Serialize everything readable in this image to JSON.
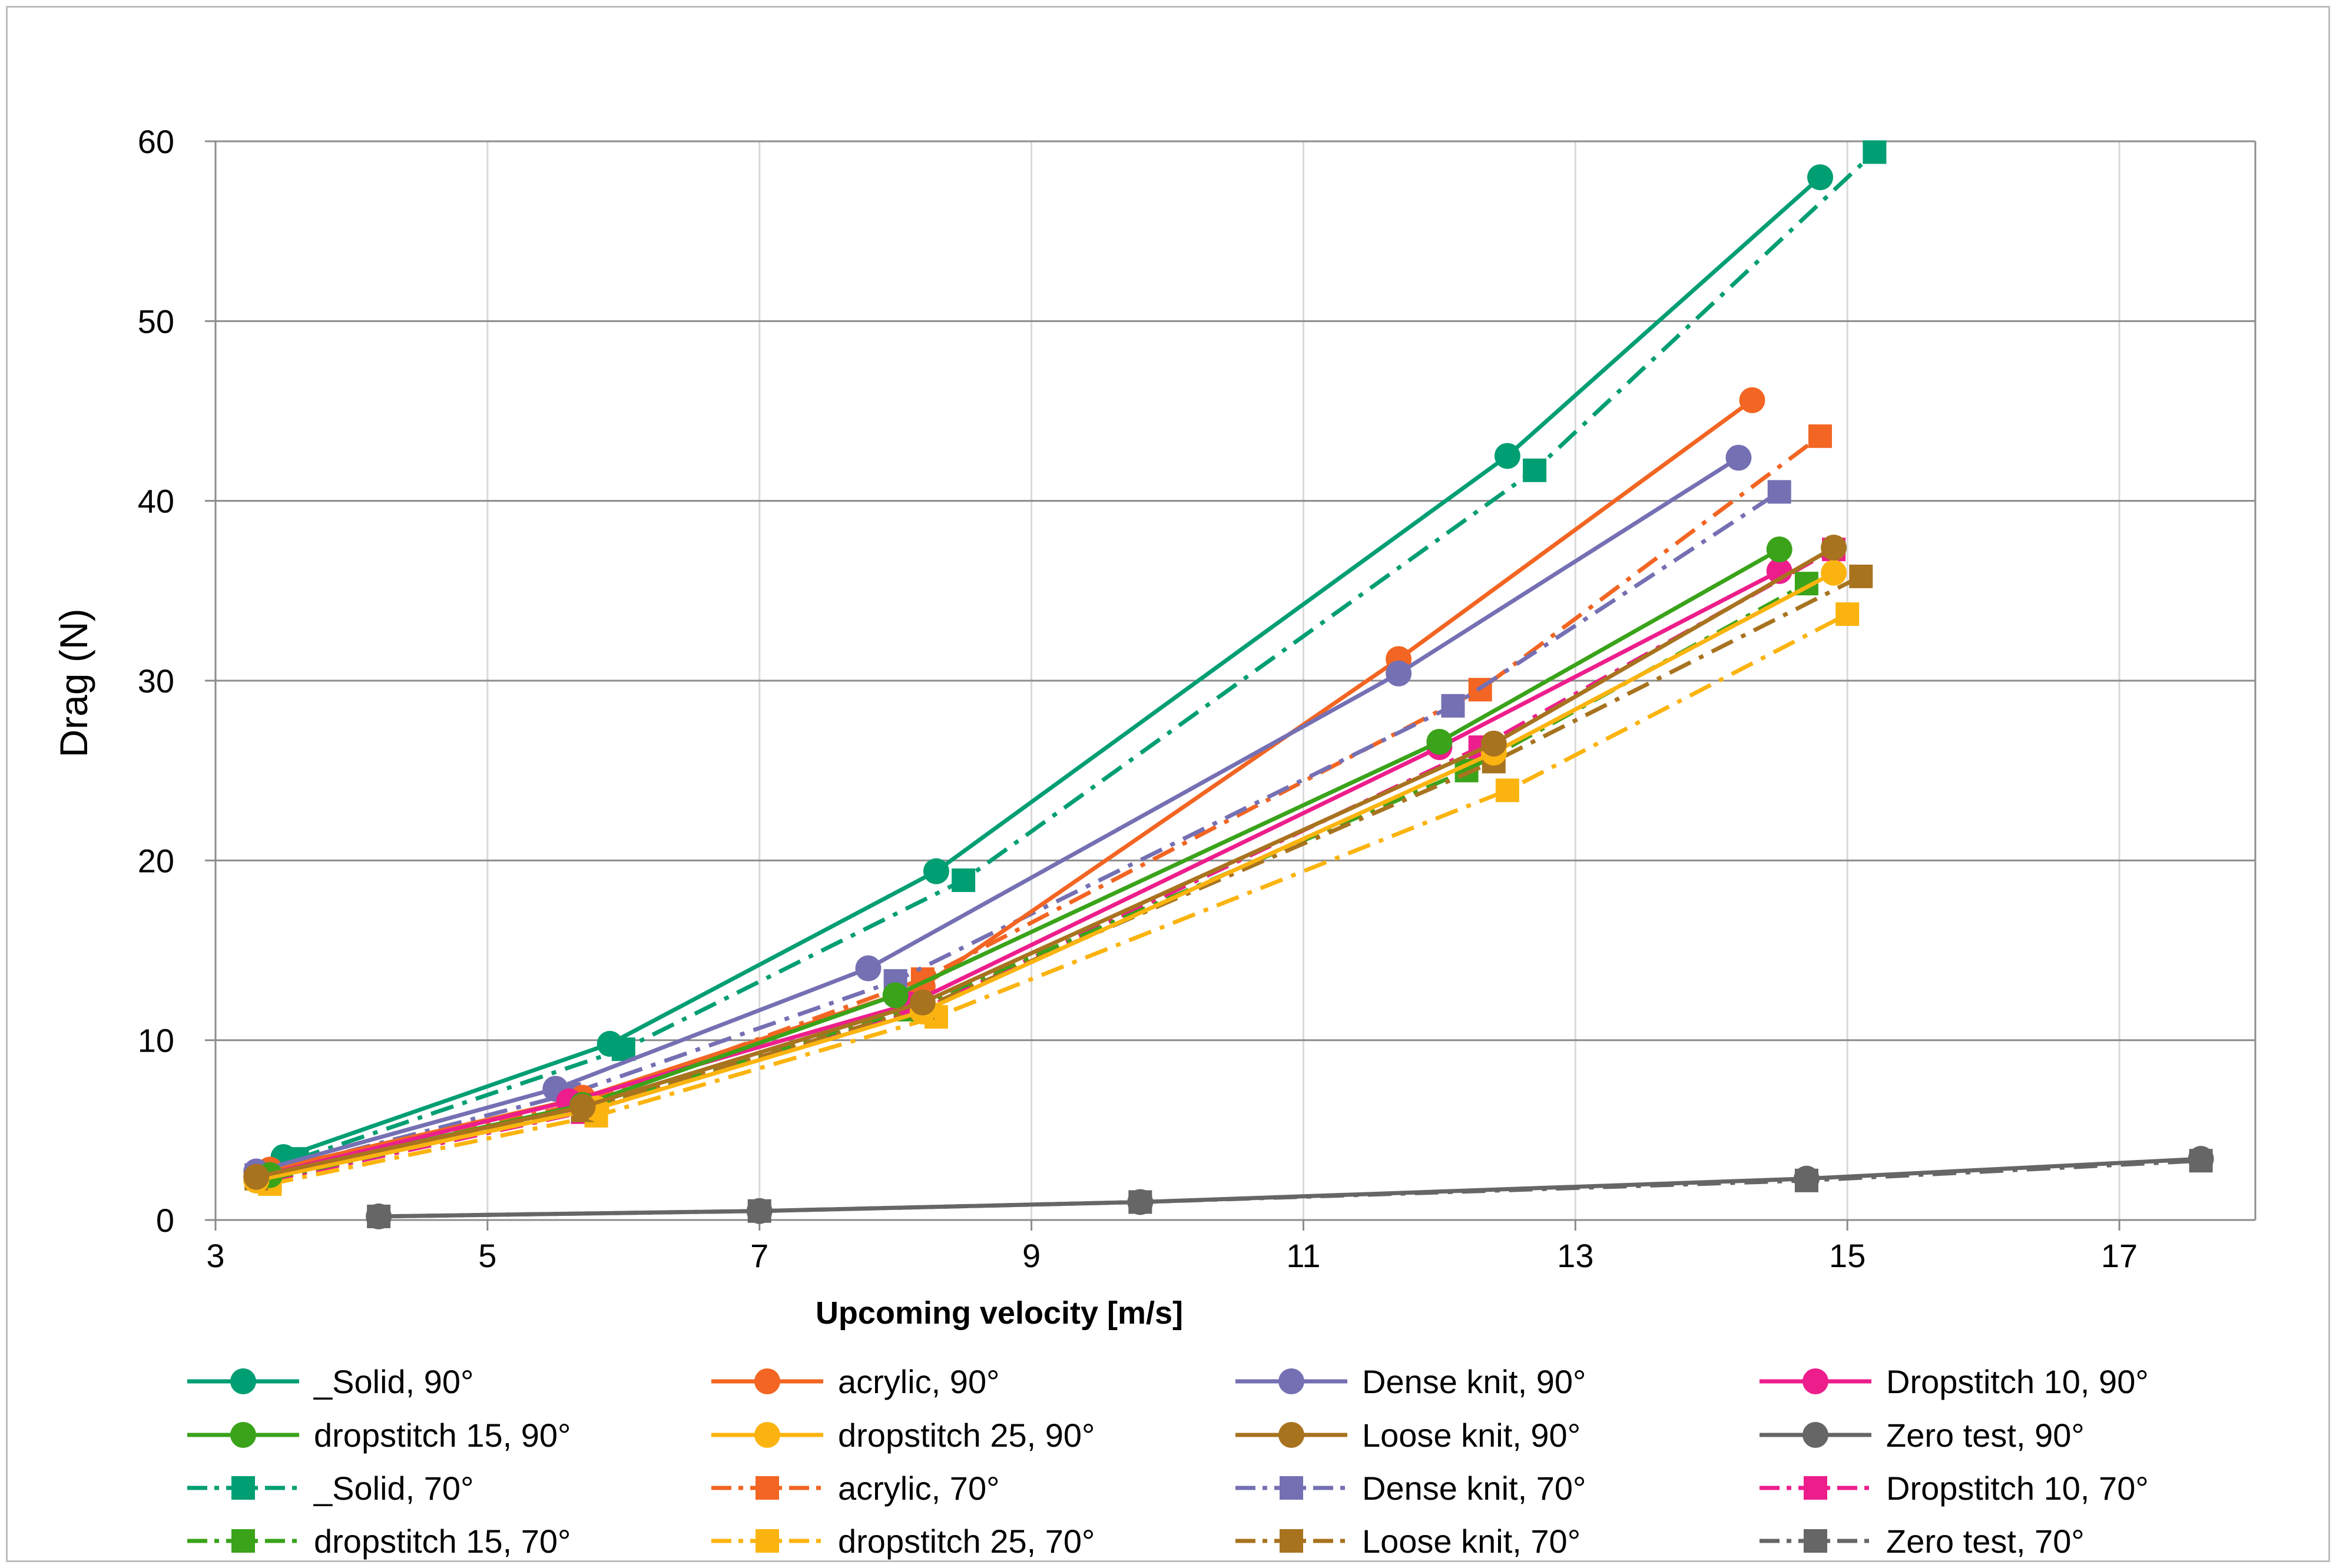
{
  "chart_data": {
    "type": "line",
    "title": "",
    "xlabel": "Upcoming velocity [m/s]",
    "ylabel": "Drag (N)",
    "xlim": [
      3,
      18
    ],
    "ylim": [
      0,
      60
    ],
    "xticks": [
      3,
      5,
      7,
      9,
      11,
      13,
      15,
      17
    ],
    "yticks": [
      0,
      10,
      20,
      30,
      40,
      50,
      60
    ],
    "grid": true,
    "legend_position": "bottom",
    "series": [
      {
        "name": "_Solid, 90°",
        "color": "#009e73",
        "marker": "circle",
        "dash": "solid",
        "x": [
          3.5,
          5.9,
          8.3,
          12.5,
          14.8
        ],
        "y": [
          3.5,
          9.8,
          19.4,
          42.5,
          58.0
        ]
      },
      {
        "name": "acrylic, 90°",
        "color": "#f26522",
        "marker": "circle",
        "dash": "solid",
        "x": [
          3.4,
          5.7,
          8.2,
          11.7,
          14.3
        ],
        "y": [
          2.8,
          6.8,
          13.0,
          31.2,
          45.6
        ]
      },
      {
        "name": "Dense knit, 90°",
        "color": "#7570b3",
        "marker": "circle",
        "dash": "solid",
        "x": [
          3.3,
          5.5,
          7.8,
          11.7,
          14.2
        ],
        "y": [
          2.7,
          7.3,
          14.0,
          30.4,
          42.4
        ]
      },
      {
        "name": "Dropstitch 10, 90°",
        "color": "#ed1e8c",
        "marker": "circle",
        "dash": "solid",
        "x": [
          3.3,
          5.6,
          8.1,
          12.0,
          14.5
        ],
        "y": [
          2.4,
          6.6,
          12.0,
          26.3,
          36.1
        ]
      },
      {
        "name": "dropstitch 15, 90°",
        "color": "#3aa31a",
        "marker": "circle",
        "dash": "solid",
        "x": [
          3.4,
          5.7,
          8.0,
          12.0,
          14.5
        ],
        "y": [
          2.5,
          6.4,
          12.5,
          26.6,
          37.3
        ]
      },
      {
        "name": "dropstitch 25, 90°",
        "color": "#fbb40f",
        "marker": "circle",
        "dash": "solid",
        "x": [
          3.3,
          5.8,
          8.2,
          12.4,
          14.9
        ],
        "y": [
          2.2,
          6.2,
          11.6,
          26.0,
          36.0
        ]
      },
      {
        "name": "Loose knit, 90°",
        "color": "#a8731f",
        "marker": "circle",
        "dash": "solid",
        "x": [
          3.3,
          5.7,
          8.2,
          12.4,
          14.9
        ],
        "y": [
          2.4,
          6.3,
          12.1,
          26.5,
          37.4
        ]
      },
      {
        "name": "Zero test, 90°",
        "color": "#666666",
        "marker": "circle",
        "dash": "solid",
        "x": [
          4.2,
          7.0,
          9.8,
          14.7,
          17.6
        ],
        "y": [
          0.2,
          0.5,
          1.0,
          2.3,
          3.4
        ]
      },
      {
        "name": "_Solid, 70°",
        "color": "#009e73",
        "marker": "square",
        "dash": "dashdot",
        "x": [
          3.6,
          6.0,
          8.5,
          12.7,
          15.2
        ],
        "y": [
          3.4,
          9.5,
          18.9,
          41.7,
          59.4
        ]
      },
      {
        "name": "acrylic, 70°",
        "color": "#f26522",
        "marker": "square",
        "dash": "dashdot",
        "x": [
          3.4,
          5.7,
          8.2,
          12.3,
          14.8
        ],
        "y": [
          2.6,
          6.5,
          13.4,
          29.5,
          43.6
        ]
      },
      {
        "name": "Dense knit, 70°",
        "color": "#7570b3",
        "marker": "square",
        "dash": "dashdot",
        "x": [
          3.3,
          5.6,
          8.0,
          12.1,
          14.5
        ],
        "y": [
          2.5,
          7.0,
          13.3,
          28.6,
          40.5
        ]
      },
      {
        "name": "Dropstitch 10, 70°",
        "color": "#ed1e8c",
        "marker": "square",
        "dash": "dashdot",
        "x": [
          3.4,
          5.7,
          8.2,
          12.3,
          14.9
        ],
        "y": [
          2.2,
          6.0,
          11.7,
          26.3,
          37.3
        ]
      },
      {
        "name": "dropstitch 15, 70°",
        "color": "#3aa31a",
        "marker": "square",
        "dash": "dashdot",
        "x": [
          3.4,
          5.7,
          8.1,
          12.2,
          14.7
        ],
        "y": [
          2.3,
          6.1,
          11.7,
          25.0,
          35.4
        ]
      },
      {
        "name": "dropstitch 25, 70°",
        "color": "#fbb40f",
        "marker": "square",
        "dash": "dashdot",
        "x": [
          3.4,
          5.8,
          8.3,
          12.5,
          15.0
        ],
        "y": [
          2.0,
          5.8,
          11.3,
          23.9,
          33.7
        ]
      },
      {
        "name": "Loose knit, 70°",
        "color": "#a8731f",
        "marker": "square",
        "dash": "dashdot",
        "x": [
          3.3,
          5.7,
          8.2,
          12.4,
          15.1
        ],
        "y": [
          2.3,
          6.1,
          11.8,
          25.5,
          35.8
        ]
      },
      {
        "name": "Zero test, 70°",
        "color": "#666666",
        "marker": "square",
        "dash": "dashdot",
        "x": [
          4.2,
          7.0,
          9.8,
          14.7,
          17.6
        ],
        "y": [
          0.2,
          0.5,
          1.0,
          2.2,
          3.3
        ]
      }
    ]
  }
}
